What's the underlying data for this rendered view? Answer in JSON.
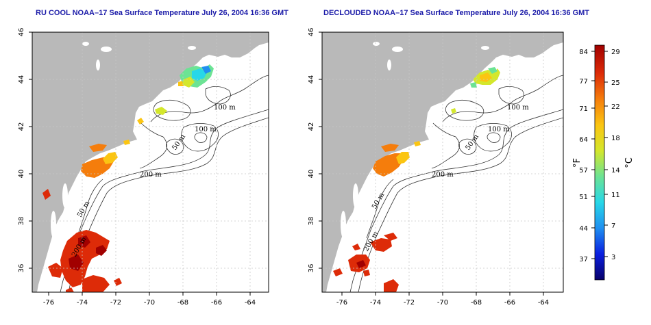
{
  "panels": [
    {
      "title": "RU COOL NOAA–17 Sea Surface Temperature July 26, 2004 16:36 GMT"
    },
    {
      "title": "DECLOUDED NOAA–17 Sea Surface Temperature July 26, 2004 16:36 GMT"
    }
  ],
  "axes": {
    "longitude_ticks": [
      "-76",
      "-74",
      "-72",
      "-70",
      "-68",
      "-66",
      "-64"
    ],
    "latitude_ticks": [
      "46",
      "44",
      "42",
      "40",
      "38",
      "36"
    ]
  },
  "contour_labels": [
    "100 m",
    "100 m",
    "50 m",
    "200 m",
    "50 m",
    "200 m"
  ],
  "colorbar": {
    "fahrenheit_label": "°F",
    "celsius_label": "°C",
    "fahrenheit_ticks": [
      "84",
      "77",
      "71",
      "64",
      "57",
      "51",
      "44",
      "37"
    ],
    "celsius_ticks": [
      "29",
      "25",
      "22",
      "18",
      "14",
      "11",
      "7",
      "3"
    ],
    "colors": [
      "#08006a",
      "#0a1fe0",
      "#1f8ff0",
      "#27d7e8",
      "#6ce394",
      "#d4e72c",
      "#fbc512",
      "#f57d0c",
      "#dd2b08",
      "#a10000"
    ]
  },
  "colors": {
    "land": "#b9b9b9",
    "ocean": "#ffffff",
    "title": "#1a1aa8",
    "grid": "#c8c8c8"
  }
}
